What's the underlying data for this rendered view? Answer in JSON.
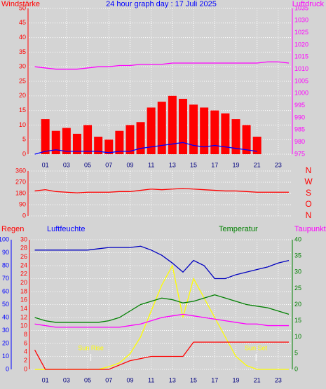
{
  "chart_data": [
    {
      "type": "line",
      "title": "24 hour graph day : 17 Juli 2025",
      "ylabel": "Windstärke",
      "y2label": "Luftdruck",
      "x": [
        0,
        1,
        2,
        3,
        4,
        5,
        6,
        7,
        8,
        9,
        10,
        11,
        12,
        13,
        14,
        15,
        16,
        17,
        18,
        19,
        20,
        21,
        22,
        23,
        24
      ],
      "xlim": [
        -0.5,
        24.2
      ],
      "xticks": [
        {
          "value": 1,
          "label": "01"
        },
        {
          "value": 3,
          "label": "03"
        },
        {
          "value": 5,
          "label": "05"
        },
        {
          "value": 7,
          "label": "07"
        },
        {
          "value": 9,
          "label": "09"
        },
        {
          "value": 11,
          "label": "11"
        },
        {
          "value": 13,
          "label": "13"
        },
        {
          "value": 15,
          "label": "15"
        },
        {
          "value": 17,
          "label": "17"
        },
        {
          "value": 19,
          "label": "19"
        },
        {
          "value": 21,
          "label": "21"
        },
        {
          "value": 23,
          "label": "23"
        }
      ],
      "ylim": [
        0,
        50
      ],
      "yticks": [
        0,
        5,
        10,
        15,
        20,
        25,
        30,
        35,
        40,
        45,
        50
      ],
      "y2lim": [
        975,
        1035
      ],
      "y2ticks": [
        975,
        980,
        985,
        990,
        995,
        1000,
        1005,
        1010,
        1015,
        1020,
        1025,
        1030,
        1035
      ],
      "grid": true,
      "series": [
        {
          "color": "#ff0000",
          "kind": "bar",
          "values": [
            0,
            12,
            8,
            9,
            7,
            10,
            6,
            5,
            8,
            10,
            11,
            16,
            18,
            20,
            19,
            17,
            16,
            15,
            14,
            12,
            10,
            6,
            0,
            0,
            0
          ]
        },
        {
          "color": "#0000ff",
          "values": [
            0,
            1,
            1.5,
            1,
            1,
            1,
            1,
            0.5,
            1,
            1,
            2,
            2.5,
            3,
            3.5,
            4,
            3,
            2.5,
            3,
            2.5,
            2,
            1.5,
            1,
            null,
            null,
            null
          ]
        },
        {
          "color": "#ff00ff",
          "axis": "y2",
          "values": [
            1011,
            1010.5,
            1010,
            1010,
            1010,
            1010.5,
            1011,
            1011,
            1011.5,
            1011.5,
            1012,
            1012,
            1012,
            1012.5,
            1012.5,
            1012.5,
            1012.5,
            1012.5,
            1012.5,
            1012.5,
            1012.5,
            1012.5,
            1013,
            1013,
            1012.5
          ]
        }
      ]
    },
    {
      "type": "line",
      "x": [
        0,
        1,
        2,
        3,
        4,
        5,
        6,
        7,
        8,
        9,
        10,
        11,
        12,
        13,
        14,
        15,
        16,
        17,
        18,
        19,
        20,
        21,
        22,
        23,
        24
      ],
      "xlim": [
        -0.5,
        24.2
      ],
      "xticks": [
        1,
        3,
        5,
        7,
        9,
        11,
        13,
        15,
        17,
        19,
        21,
        23
      ],
      "ylim": [
        0,
        360
      ],
      "yticks": [
        0,
        90,
        180,
        270,
        360
      ],
      "y2lim": [
        0,
        360
      ],
      "y2ticks": [
        {
          "value": 0,
          "label": "N"
        },
        {
          "value": 90,
          "label": "O"
        },
        {
          "value": 180,
          "label": "S"
        },
        {
          "value": 270,
          "label": "W"
        },
        {
          "value": 360,
          "label": "N"
        }
      ],
      "grid": true,
      "series": [
        {
          "color": "#ff0000",
          "values": [
            200,
            210,
            195,
            190,
            185,
            190,
            190,
            190,
            195,
            195,
            205,
            215,
            210,
            215,
            220,
            215,
            210,
            205,
            200,
            200,
            195,
            190,
            190,
            190,
            190
          ]
        }
      ]
    },
    {
      "type": "line",
      "ylabel": "Luftfeuchte",
      "y2label": "Temperatur",
      "y3label": "Regen",
      "x": [
        0,
        1,
        2,
        3,
        4,
        5,
        6,
        7,
        8,
        9,
        10,
        11,
        12,
        13,
        14,
        15,
        16,
        17,
        18,
        19,
        20,
        21,
        22,
        23,
        24
      ],
      "xlim": [
        -0.5,
        24.2
      ],
      "xticks": [
        {
          "value": 1,
          "label": "01"
        },
        {
          "value": 3,
          "label": "03"
        },
        {
          "value": 5,
          "label": "05"
        },
        {
          "value": 7,
          "label": "07"
        },
        {
          "value": 9,
          "label": "09"
        },
        {
          "value": 11,
          "label": "11"
        },
        {
          "value": 13,
          "label": "13"
        },
        {
          "value": 15,
          "label": "15"
        },
        {
          "value": 17,
          "label": "17"
        },
        {
          "value": 19,
          "label": "19"
        },
        {
          "value": 21,
          "label": "21"
        },
        {
          "value": 23,
          "label": "23"
        }
      ],
      "ylim": [
        0,
        100
      ],
      "yticks": [
        0,
        10,
        20,
        30,
        40,
        50,
        60,
        70,
        80,
        90,
        100
      ],
      "y2lim": [
        0,
        40
      ],
      "y2ticks": [
        0,
        5,
        10,
        15,
        20,
        25,
        30,
        35,
        40
      ],
      "y3lim": [
        0,
        30
      ],
      "y3ticks": [
        0,
        2,
        4,
        6,
        8,
        10,
        12,
        14,
        16,
        18,
        20,
        22,
        24,
        26,
        28,
        30
      ],
      "grid": true,
      "annotations": [
        {
          "text": "Sun Rise",
          "x": 5.3
        },
        {
          "text": "Sun Set",
          "x": 20.9
        }
      ],
      "series": [
        {
          "color": "#ffff00",
          "values": [
            0,
            0,
            0,
            0,
            0,
            0,
            0,
            2,
            5,
            12,
            25,
            45,
            65,
            80,
            40,
            70,
            55,
            40,
            25,
            10,
            3,
            0,
            0,
            0,
            0
          ]
        },
        {
          "color": "#0000c0",
          "values": [
            92,
            92,
            92,
            92,
            92,
            92,
            93,
            94,
            94,
            94,
            95,
            92,
            88,
            82,
            75,
            84,
            80,
            70,
            70,
            73,
            75,
            77,
            79,
            82,
            84
          ]
        },
        {
          "color": "#008000",
          "axis": "y2",
          "values": [
            16,
            15,
            14.5,
            14.5,
            14.5,
            14.5,
            14.5,
            15,
            16,
            18,
            20,
            21,
            22,
            21.5,
            20.5,
            21,
            22,
            23,
            22,
            21,
            20,
            19.5,
            19,
            18,
            17
          ]
        },
        {
          "name": "Taupunkt",
          "color": "#ff00ff",
          "axis": "y2",
          "values": [
            14,
            13.5,
            13,
            13,
            13,
            13,
            13,
            13,
            13,
            13.5,
            14,
            15,
            16,
            16.5,
            17,
            16.5,
            16,
            15.5,
            15,
            14.5,
            14,
            14,
            13.5,
            13.5,
            13.5
          ]
        },
        {
          "color": "#ff0000",
          "axis": "y3",
          "values": [
            4.5,
            0,
            0,
            0,
            0,
            0,
            0,
            0,
            1,
            2,
            2.5,
            3,
            3,
            3,
            3,
            6.3,
            6.3,
            6.3,
            6.3,
            6.3,
            6.3,
            6.3,
            6.3,
            6.3,
            6.3
          ]
        }
      ]
    }
  ]
}
